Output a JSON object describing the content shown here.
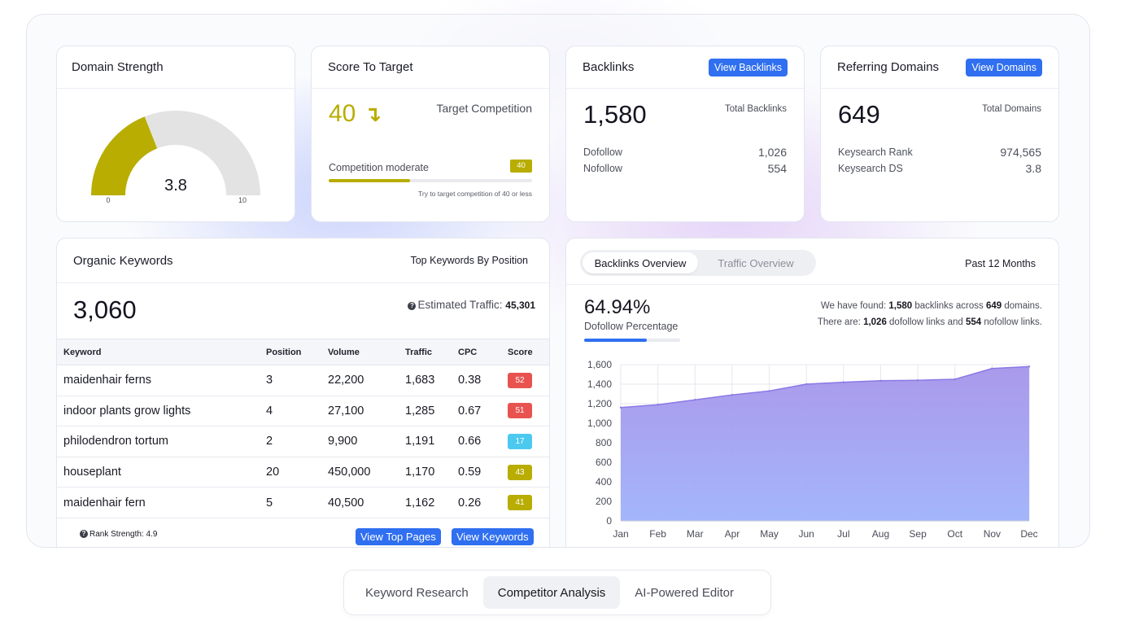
{
  "domain_strength": {
    "title": "Domain Strength",
    "value": "3.8",
    "gauge_value": 3.8,
    "gauge_max": 10,
    "min_label": "0",
    "max_label": "10",
    "gauge_color": "#b8ad00",
    "track_color": "#e3e3e3"
  },
  "score_to_target": {
    "title": "Score To Target",
    "value": "40",
    "arrow": "↴",
    "target_label": "Target Competition",
    "competition_label": "Competition moderate",
    "badge": "40",
    "progress": 0.4,
    "note": "Try to target competition of 40 or less",
    "accent": "#b8ad00"
  },
  "backlinks": {
    "title": "Backlinks",
    "button": "View Backlinks",
    "total": "1,580",
    "total_label": "Total Backlinks",
    "rows": [
      {
        "label": "Dofollow",
        "value": "1,026"
      },
      {
        "label": "Nofollow",
        "value": "554"
      }
    ]
  },
  "referring_domains": {
    "title": "Referring Domains",
    "button": "View Domains",
    "total": "649",
    "total_label": "Total Domains",
    "rows": [
      {
        "label": "Keysearch Rank",
        "value": "974,565"
      },
      {
        "label": "Keysearch DS",
        "value": "3.8"
      }
    ]
  },
  "organic_keywords": {
    "title": "Organic Keywords",
    "subtitle": "Top Keywords By Position",
    "total": "3,060",
    "traffic_label": "Estimated Traffic:",
    "traffic_value": "45,301",
    "columns": [
      "Keyword",
      "Position",
      "Volume",
      "Traffic",
      "CPC",
      "Score"
    ],
    "rows": [
      {
        "keyword": "maidenhair ferns",
        "position": "3",
        "volume": "22,200",
        "traffic": "1,683",
        "cpc": "0.38",
        "score": "52",
        "color": "#e8534f"
      },
      {
        "keyword": "indoor plants grow lights",
        "position": "4",
        "volume": "27,100",
        "traffic": "1,285",
        "cpc": "0.67",
        "score": "51",
        "color": "#e8534f"
      },
      {
        "keyword": "philodendron tortum",
        "position": "2",
        "volume": "9,900",
        "traffic": "1,191",
        "cpc": "0.66",
        "score": "17",
        "color": "#4cc9ef"
      },
      {
        "keyword": "houseplant",
        "position": "20",
        "volume": "450,000",
        "traffic": "1,170",
        "cpc": "0.59",
        "score": "43",
        "color": "#b8ad00"
      },
      {
        "keyword": "maidenhair fern",
        "position": "5",
        "volume": "40,500",
        "traffic": "1,162",
        "cpc": "0.26",
        "score": "41",
        "color": "#b8ad00"
      }
    ],
    "rank_strength": "Rank Strength: 4.9",
    "btn_pages": "View Top Pages",
    "btn_keywords": "View Keywords"
  },
  "overview": {
    "tabs": [
      "Backlinks Overview",
      "Traffic Overview"
    ],
    "period": "Past 12 Months",
    "percent": "64.94%",
    "percent_label": "Dofollow Percentage",
    "percent_value": 0.6494,
    "found_line": {
      "pre": "We have found: ",
      "b1": "1,580",
      "mid": " backlinks across ",
      "b2": "649",
      "post": " domains."
    },
    "there_line": {
      "pre": "There are: ",
      "b1": "1,026",
      "mid": " dofollow links and ",
      "b2": "554",
      "post": " nofollow links."
    }
  },
  "chart_data": {
    "type": "area",
    "title": "",
    "categories": [
      "Jan",
      "Feb",
      "Mar",
      "Apr",
      "May",
      "Jun",
      "Jul",
      "Aug",
      "Sep",
      "Oct",
      "Nov",
      "Dec"
    ],
    "values": [
      1160,
      1190,
      1240,
      1290,
      1330,
      1400,
      1420,
      1435,
      1440,
      1450,
      1560,
      1580
    ],
    "ylim": [
      0,
      1600
    ],
    "yticks": [
      0,
      200,
      400,
      600,
      800,
      1000,
      1200,
      1400,
      1600
    ],
    "ytick_labels": [
      "0",
      "200",
      "400",
      "600",
      "800",
      "1,000",
      "1,200",
      "1,400",
      "1,600"
    ],
    "grid": true,
    "fill_top": "#a694ea",
    "fill_bottom": "#9fb2fb",
    "line_color": "#8c78e6"
  },
  "bottom_tabs": [
    "Keyword Research",
    "Competitor Analysis",
    "AI-Powered Editor"
  ]
}
